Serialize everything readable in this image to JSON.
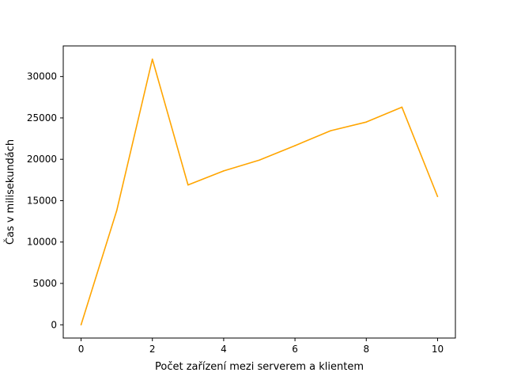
{
  "chart_data": {
    "type": "line",
    "title": "",
    "xlabel": "Počet zařízení mezi serverem a klientem",
    "ylabel": "Čas v milisekundách",
    "x": [
      0,
      1,
      2,
      3,
      4,
      5,
      6,
      7,
      8,
      9,
      10
    ],
    "series": [
      {
        "color": "#ffa500",
        "values": [
          0,
          13800,
          32100,
          16900,
          18600,
          19900,
          21650,
          23450,
          24500,
          26300,
          15500
        ]
      }
    ],
    "xlim": [
      -0.5,
      10.5
    ],
    "ylim": [
      -1600,
      33700
    ],
    "xticks": [
      0,
      2,
      4,
      6,
      8,
      10
    ],
    "yticks": [
      0,
      5000,
      10000,
      15000,
      20000,
      25000,
      30000
    ],
    "xtick_labels": [
      "0",
      "2",
      "4",
      "6",
      "8",
      "10"
    ],
    "ytick_labels": [
      "0",
      "5000",
      "10000",
      "15000",
      "20000",
      "25000",
      "30000"
    ],
    "grid": false,
    "legend": false
  }
}
